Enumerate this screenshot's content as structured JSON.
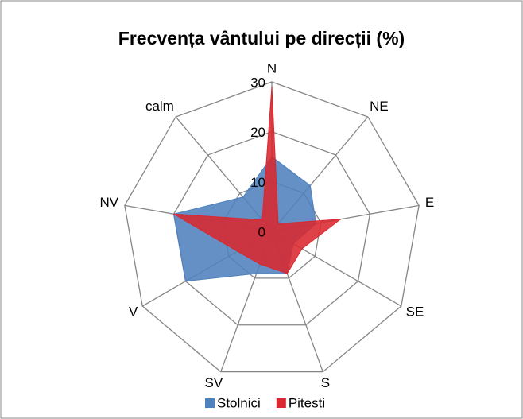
{
  "chart_data": {
    "type": "radar",
    "title": "Frecvența vântului pe direcții (%)",
    "categories": [
      "N",
      "NE",
      "E",
      "SE",
      "S",
      "SV",
      "V",
      "NV",
      "calm"
    ],
    "series": [
      {
        "name": "Stolnici",
        "color": "#4f81bd",
        "values": [
          15,
          12,
          9,
          5,
          9,
          9,
          20,
          20,
          9
        ]
      },
      {
        "name": "Pitesti",
        "color": "#d9282f",
        "values": [
          29,
          2,
          14,
          7,
          9,
          7,
          8,
          20,
          3
        ]
      }
    ],
    "ylim": [
      0,
      30
    ],
    "yticks": [
      0,
      10,
      20,
      30
    ],
    "grid": true,
    "legend": "bottom"
  }
}
